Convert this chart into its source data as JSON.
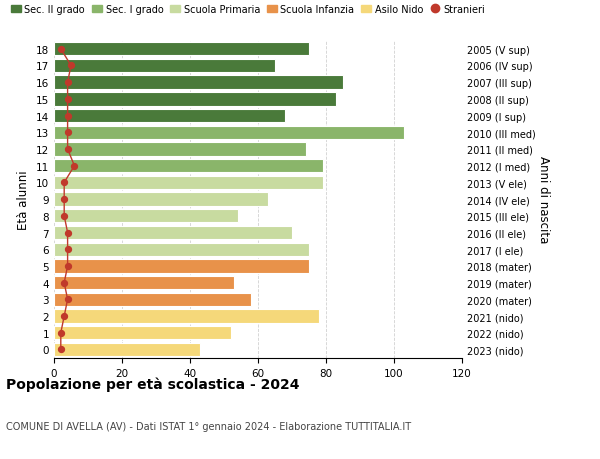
{
  "ages": [
    0,
    1,
    2,
    3,
    4,
    5,
    6,
    7,
    8,
    9,
    10,
    11,
    12,
    13,
    14,
    15,
    16,
    17,
    18
  ],
  "values": [
    43,
    52,
    78,
    58,
    53,
    75,
    75,
    70,
    54,
    63,
    79,
    79,
    74,
    103,
    68,
    83,
    85,
    65,
    75
  ],
  "bar_colors": [
    "#f5d87a",
    "#f5d87a",
    "#f5d87a",
    "#e8924a",
    "#e8924a",
    "#e8924a",
    "#c8dba0",
    "#c8dba0",
    "#c8dba0",
    "#c8dba0",
    "#c8dba0",
    "#8ab56a",
    "#8ab56a",
    "#8ab56a",
    "#4a7a3a",
    "#4a7a3a",
    "#4a7a3a",
    "#4a7a3a",
    "#4a7a3a"
  ],
  "stranieri_values": [
    2,
    2,
    3,
    4,
    3,
    4,
    4,
    4,
    3,
    3,
    3,
    6,
    4,
    4,
    4,
    4,
    4,
    5,
    2
  ],
  "right_labels": [
    "2023 (nido)",
    "2022 (nido)",
    "2021 (nido)",
    "2020 (mater)",
    "2019 (mater)",
    "2018 (mater)",
    "2017 (I ele)",
    "2016 (II ele)",
    "2015 (III ele)",
    "2014 (IV ele)",
    "2013 (V ele)",
    "2012 (I med)",
    "2011 (II med)",
    "2010 (III med)",
    "2009 (I sup)",
    "2008 (II sup)",
    "2007 (III sup)",
    "2006 (IV sup)",
    "2005 (V sup)"
  ],
  "legend_labels": [
    "Sec. II grado",
    "Sec. I grado",
    "Scuola Primaria",
    "Scuola Infanzia",
    "Asilo Nido",
    "Stranieri"
  ],
  "legend_colors": [
    "#4a7a3a",
    "#8ab56a",
    "#c8dba0",
    "#e8924a",
    "#f5d87a",
    "#c0392b"
  ],
  "ylabel": "Età alunni",
  "right_ylabel": "Anni di nascita",
  "title": "Popolazione per età scolastica - 2024",
  "subtitle": "COMUNE DI AVELLA (AV) - Dati ISTAT 1° gennaio 2024 - Elaborazione TUTTITALIA.IT",
  "xlim": [
    0,
    120
  ],
  "xticks": [
    0,
    20,
    40,
    60,
    80,
    100,
    120
  ],
  "background_color": "#ffffff",
  "grid_color": "#cccccc"
}
